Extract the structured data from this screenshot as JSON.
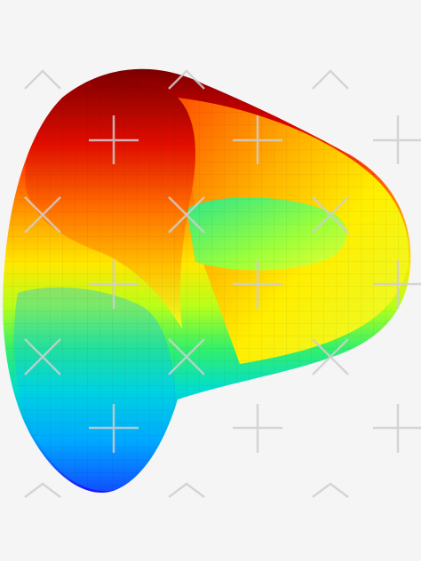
{
  "colors": {
    "background": "#f5f5f5",
    "watermark": "#cfcfcf",
    "gradient_stops": [
      "#7a0000",
      "#d40000",
      "#ff4a00",
      "#ff9a00",
      "#ffe800",
      "#b8ff1a",
      "#33f06a",
      "#00dcd2",
      "#009bff",
      "#1020ff",
      "#2a00c8"
    ]
  },
  "icons": {
    "watermark": "watermark-plus-icon"
  }
}
